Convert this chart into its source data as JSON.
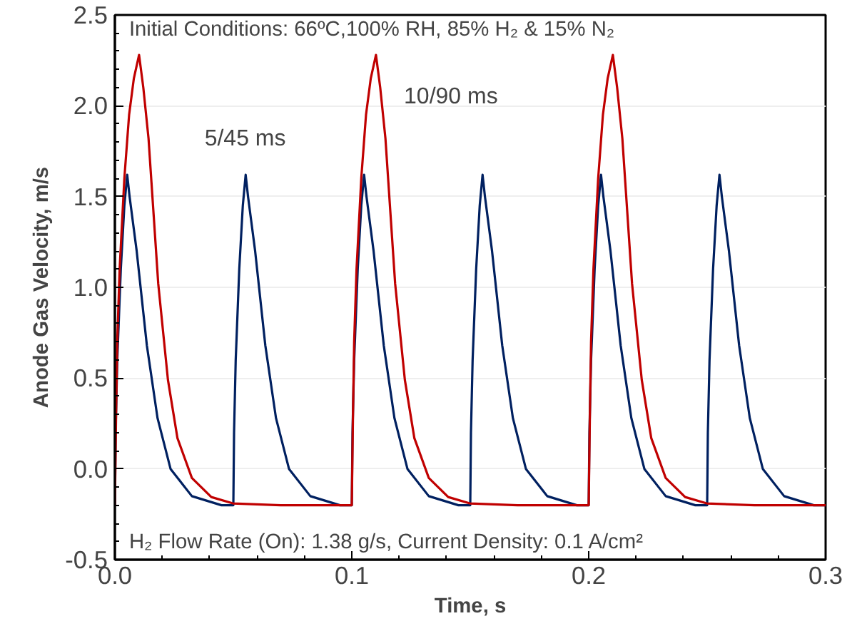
{
  "chart_data": {
    "type": "line",
    "xlabel": "Time, s",
    "ylabel": "Anode Gas Velocity, m/s",
    "annotations": [
      "Initial Conditions: 66ºC,100% RH, 85% H₂ & 15% N₂",
      "H₂ Flow Rate (On): 1.38 g/s, Current Density: 0.1 A/cm²"
    ],
    "xlim": [
      0,
      0.3
    ],
    "xticks": [
      {
        "value": 0,
        "label": "0.0"
      },
      0.1,
      0.2,
      0.3
    ],
    "ylim": [
      -0.5,
      2.5
    ],
    "yticks": [
      -0.5,
      {
        "value": 0,
        "label": "0.0"
      },
      0.5,
      {
        "value": 1,
        "label": "1.0"
      },
      1.5,
      {
        "value": 2,
        "label": "2.0"
      },
      2.5
    ],
    "grid": "y",
    "legend": false,
    "marker": "none",
    "line_style": "solid",
    "series": [
      {
        "name": "5/45 ms",
        "color": "#002060",
        "x": [
          0,
          0.0003,
          0.001,
          0.0025,
          0.004,
          0.0052,
          0.0062,
          0.0092,
          0.0135,
          0.018,
          0.0235,
          0.0325,
          0.045,
          0.05,
          0.0503,
          0.051,
          0.0525,
          0.054,
          0.0552,
          0.0562,
          0.0592,
          0.0635,
          0.068,
          0.0735,
          0.0825,
          0.095,
          0.1,
          0.1003,
          0.101,
          0.1025,
          0.104,
          0.1052,
          0.1062,
          0.1092,
          0.1135,
          0.118,
          0.1235,
          0.1325,
          0.145,
          0.15,
          0.1503,
          0.151,
          0.1525,
          0.154,
          0.1552,
          0.1562,
          0.1592,
          0.1635,
          0.168,
          0.1735,
          0.1825,
          0.195,
          0.2,
          0.2003,
          0.201,
          0.2025,
          0.204,
          0.2052,
          0.2062,
          0.2092,
          0.2135,
          0.218,
          0.2235,
          0.2325,
          0.245,
          0.25,
          0.2503,
          0.251,
          0.2525,
          0.254,
          0.2552,
          0.2562,
          0.2592,
          0.2635,
          0.268,
          0.2735,
          0.2825,
          0.295,
          0.3
        ],
        "values": [
          -0.2,
          0.2,
          0.6,
          1.1,
          1.45,
          1.62,
          1.5,
          1.2,
          0.68,
          0.28,
          0.0,
          -0.15,
          -0.2,
          -0.2,
          0.2,
          0.6,
          1.1,
          1.45,
          1.62,
          1.5,
          1.2,
          0.68,
          0.28,
          0.0,
          -0.15,
          -0.2,
          -0.2,
          0.2,
          0.6,
          1.1,
          1.45,
          1.62,
          1.5,
          1.2,
          0.68,
          0.28,
          0.0,
          -0.15,
          -0.2,
          -0.2,
          0.2,
          0.6,
          1.1,
          1.45,
          1.62,
          1.5,
          1.2,
          0.68,
          0.28,
          0.0,
          -0.15,
          -0.2,
          -0.2,
          0.2,
          0.6,
          1.1,
          1.45,
          1.62,
          1.5,
          1.2,
          0.68,
          0.28,
          0.0,
          -0.15,
          -0.2,
          -0.2,
          0.2,
          0.6,
          1.1,
          1.45,
          1.62,
          1.5,
          1.2,
          0.68,
          0.28,
          0.0,
          -0.15,
          -0.2,
          -0.2
        ]
      },
      {
        "name": "10/90 ms",
        "color": "#c00000",
        "x": [
          0,
          0.0005,
          0.001,
          0.002,
          0.004,
          0.006,
          0.008,
          0.0102,
          0.012,
          0.0142,
          0.0183,
          0.0224,
          0.0264,
          0.0325,
          0.0407,
          0.0498,
          0.07,
          0.1,
          0.1005,
          0.101,
          0.102,
          0.104,
          0.106,
          0.108,
          0.1102,
          0.112,
          0.1142,
          0.1183,
          0.1224,
          0.1264,
          0.1325,
          0.1407,
          0.1498,
          0.17,
          0.2,
          0.2005,
          0.201,
          0.202,
          0.204,
          0.206,
          0.208,
          0.2102,
          0.212,
          0.2142,
          0.2183,
          0.2224,
          0.2264,
          0.2325,
          0.2407,
          0.2498,
          0.27,
          0.3
        ],
        "values": [
          -0.2,
          0.3,
          0.7,
          1.1,
          1.6,
          1.95,
          2.15,
          2.28,
          2.1,
          1.82,
          1.02,
          0.49,
          0.17,
          -0.05,
          -0.155,
          -0.19,
          -0.2,
          -0.2,
          0.3,
          0.7,
          1.1,
          1.6,
          1.95,
          2.15,
          2.28,
          2.1,
          1.82,
          1.02,
          0.49,
          0.17,
          -0.05,
          -0.155,
          -0.19,
          -0.2,
          -0.2,
          0.3,
          0.7,
          1.1,
          1.6,
          1.95,
          2.15,
          2.28,
          2.1,
          1.82,
          1.02,
          0.49,
          0.17,
          -0.05,
          -0.155,
          -0.19,
          -0.2,
          -0.2
        ]
      }
    ]
  }
}
